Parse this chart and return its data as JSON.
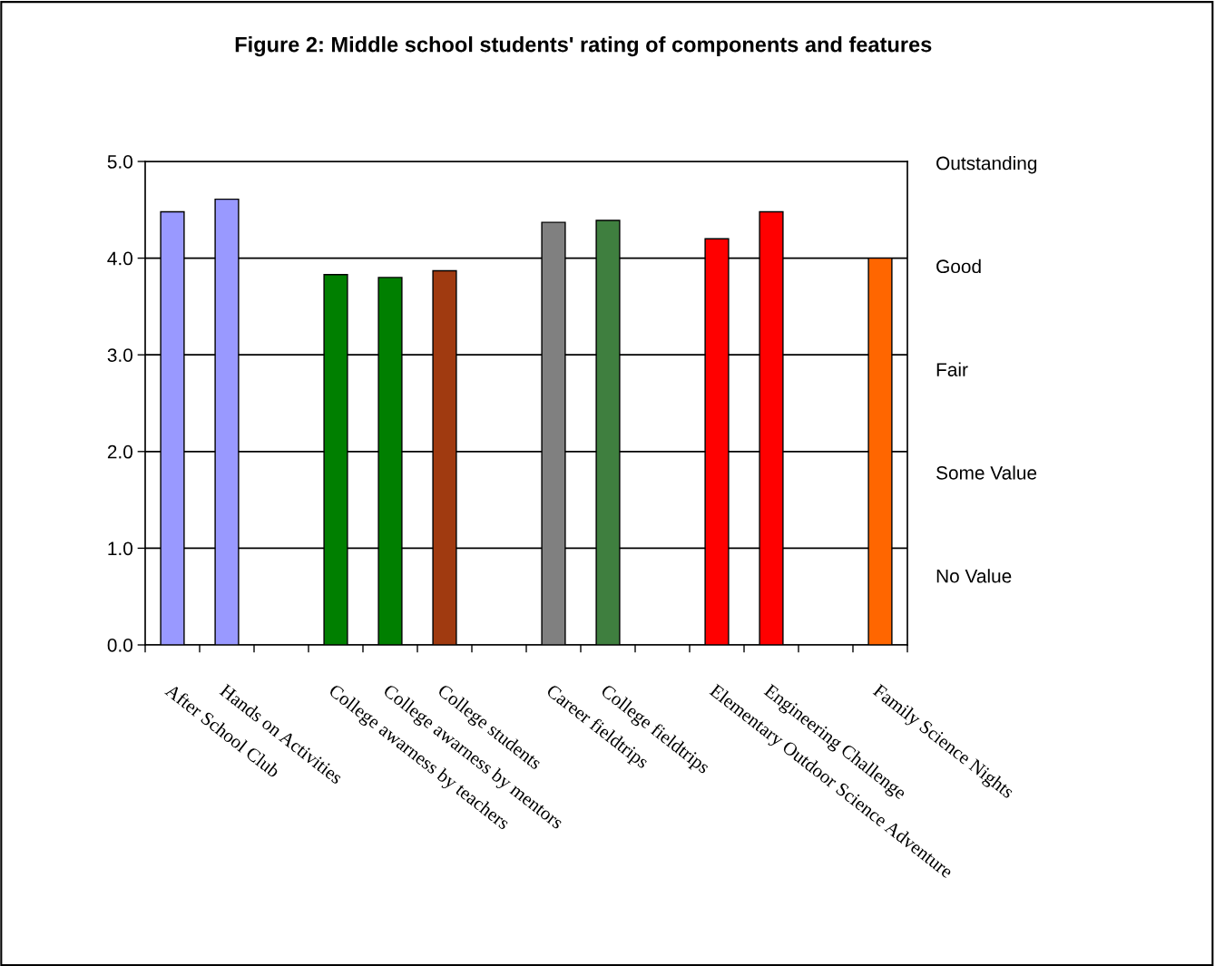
{
  "chart_data": {
    "type": "bar",
    "title": "Figure 2: Middle school students' rating of components and features",
    "categories": [
      "After School Club",
      "Hands on Activities",
      null,
      "College awarness by teachers",
      "College awarness by mentors",
      "College students",
      null,
      "Career fieldtrips",
      "College fieldtrips",
      null,
      "Elementary Outdoor Science Adventure",
      "Engineering Challenge",
      null,
      "Family Science Nights"
    ],
    "values": [
      4.48,
      4.61,
      null,
      3.83,
      3.8,
      3.87,
      null,
      4.37,
      4.39,
      null,
      4.2,
      4.48,
      null,
      4.0
    ],
    "colors": [
      "#9999ff",
      "#9999ff",
      null,
      "#007f00",
      "#007f00",
      "#a03a10",
      null,
      "#808080",
      "#3f7f3f",
      null,
      "#ff0000",
      "#ff0000",
      null,
      "#ff6600"
    ],
    "ylim": [
      0,
      5
    ],
    "yticks": [
      {
        "value": 0,
        "label": "0.0"
      },
      {
        "value": 1,
        "label": "1.0"
      },
      {
        "value": 2,
        "label": "2.0"
      },
      {
        "value": 3,
        "label": "3.0"
      },
      {
        "value": 4,
        "label": "4.0"
      },
      {
        "value": 5,
        "label": "5.0"
      }
    ],
    "annotations": [
      "Outstanding",
      "Good",
      "Fair",
      "Some Value",
      "No Value"
    ],
    "grid": "y",
    "legend": false
  }
}
